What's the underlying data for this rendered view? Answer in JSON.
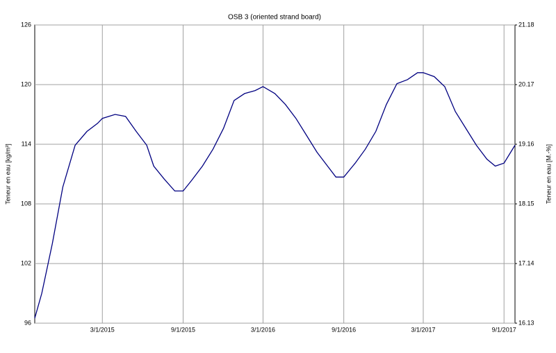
{
  "chart_data": {
    "type": "line",
    "title": "OSB 3 (oriented strand board)",
    "ylabel": "Teneur en eau [kg/m³]",
    "y2label": "Teneur en eau [M.-%]",
    "x": [
      "9/28/2014",
      "10/14/2014",
      "11/7/2014",
      "12/1/2014",
      "12/29/2014",
      "1/25/2015",
      "2/18/2015",
      "3/1/2015",
      "3/30/2015",
      "4/23/2015",
      "5/17/2015",
      "6/10/2015",
      "6/26/2015",
      "7/20/2015",
      "8/13/2015",
      "9/1/2015",
      "9/21/2015",
      "10/15/2015",
      "11/8/2015",
      "12/2/2015",
      "12/26/2015",
      "1/19/2016",
      "2/12/2016",
      "3/1/2016",
      "3/28/2016",
      "4/21/2016",
      "5/15/2016",
      "6/8/2016",
      "7/2/2016",
      "7/26/2016",
      "8/14/2016",
      "9/1/2016",
      "9/27/2016",
      "10/20/2016",
      "11/13/2016",
      "12/7/2016",
      "12/31/2016",
      "1/24/2017",
      "2/16/2017",
      "3/1/2017",
      "3/26/2017",
      "4/19/2017",
      "5/13/2017",
      "6/6/2017",
      "6/30/2017",
      "7/24/2017",
      "8/12/2017",
      "9/1/2017",
      "9/26/2017"
    ],
    "series": [
      {
        "name": "OSB 3",
        "color": "#000080",
        "values": [
          96.5,
          99,
          104,
          109.7,
          113.9,
          115.3,
          116.1,
          116.6,
          117,
          116.8,
          115.3,
          113.9,
          111.8,
          110.5,
          109.3,
          109.3,
          110.4,
          111.8,
          113.5,
          115.6,
          118.4,
          119.1,
          119.4,
          119.8,
          119.1,
          118,
          116.6,
          114.9,
          113.2,
          111.8,
          110.7,
          110.7,
          112.1,
          113.5,
          115.3,
          118,
          120.1,
          120.5,
          121.2,
          121.2,
          120.8,
          119.8,
          117.3,
          115.6,
          113.9,
          112.5,
          111.8,
          112.1,
          113.9
        ]
      }
    ],
    "xlim": [
      "9/28/2014",
      "9/26/2017"
    ],
    "xticks": [
      "3/1/2015",
      "9/1/2015",
      "3/1/2016",
      "9/1/2016",
      "3/1/2017",
      "9/1/2017"
    ],
    "ylim": [
      96,
      126
    ],
    "yticks": [
      96,
      102,
      108,
      114,
      120,
      126
    ],
    "y2lim": [
      16.13,
      21.18
    ],
    "y2ticks": [
      16.13,
      17.14,
      18.15,
      19.16,
      20.17,
      21.18
    ],
    "grid": true
  }
}
